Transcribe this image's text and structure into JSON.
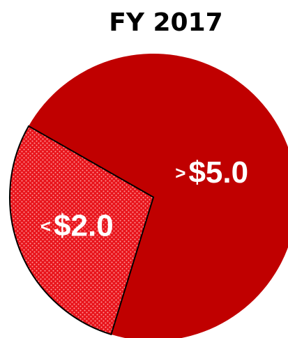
{
  "chart_data": {
    "type": "pie",
    "title": "FY 2017",
    "categories": [
      ">$5.0",
      "<$2.0"
    ],
    "values": [
      71.5,
      28.5
    ],
    "colors": [
      "#c00000",
      "#e8141b"
    ]
  }
}
